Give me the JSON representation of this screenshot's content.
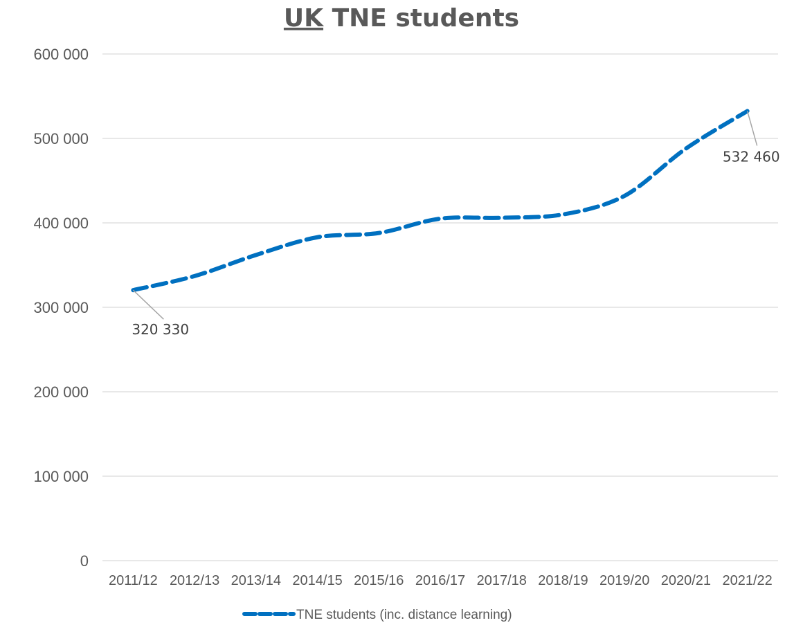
{
  "chart_data": {
    "type": "line",
    "title": "UK TNE students",
    "title_underlined_part": "UK",
    "title_rest": " TNE students",
    "categories": [
      "2011/12",
      "2012/13",
      "2013/14",
      "2014/15",
      "2015/16",
      "2016/17",
      "2017/18",
      "2018/19",
      "2019/20",
      "2020/21",
      "2021/22"
    ],
    "series": [
      {
        "name": "TNE students (inc. distance learning)",
        "color": "#0070C0",
        "line_style": "dashed",
        "values": [
          320330,
          337000,
          362000,
          383000,
          388000,
          405000,
          406000,
          410000,
          432000,
          488000,
          532460
        ]
      }
    ],
    "ylim": [
      0,
      600000
    ],
    "yticks": [
      0,
      100000,
      200000,
      300000,
      400000,
      500000,
      600000
    ],
    "ytick_labels": [
      "0",
      "100 000",
      "200 000",
      "300 000",
      "400 000",
      "500 000",
      "600 000"
    ],
    "data_labels": [
      {
        "index": 0,
        "text": "320 330"
      },
      {
        "index": 10,
        "text": "532 460"
      }
    ],
    "grid": true,
    "legend_position": "bottom"
  }
}
